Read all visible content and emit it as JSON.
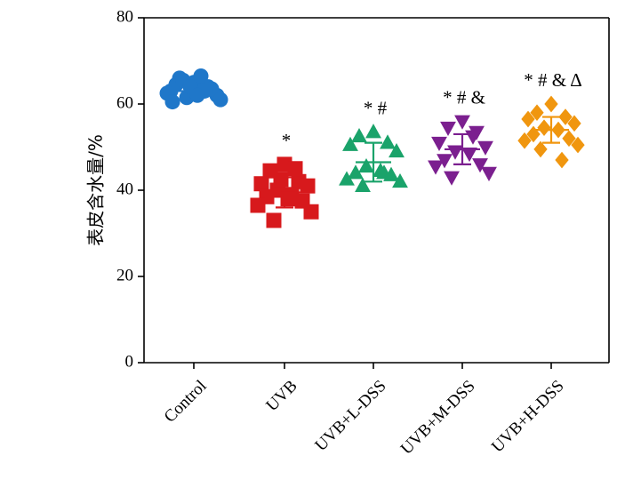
{
  "chart_data": {
    "type": "scatter",
    "title": "",
    "xlabel": "",
    "ylabel": "表皮含水量/%",
    "ylim": [
      0,
      80
    ],
    "yticks": [
      0,
      20,
      40,
      60,
      80
    ],
    "categories": [
      "Control",
      "UVB",
      "UVB+L-DSS",
      "UVB+M-DSS",
      "UVB+H-DSS"
    ],
    "grid": false,
    "legend": "none",
    "series": [
      {
        "category": "Control",
        "marker": "circle",
        "color": "#1f77c9",
        "mean": 63,
        "sd": 1.5,
        "values": [
          65,
          66,
          64,
          63,
          62,
          61.5,
          66.5,
          64.5,
          63.5,
          62.5,
          61,
          65.5,
          63,
          64,
          62,
          60.5
        ]
      },
      {
        "category": "UVB",
        "marker": "square",
        "color": "#d7191c",
        "mean": 39.5,
        "sd": 3.5,
        "values": [
          46,
          44.5,
          42,
          41.5,
          41,
          40,
          39,
          38.5,
          37.5,
          36.5,
          35,
          33,
          45,
          42.5,
          38
        ]
      },
      {
        "category": "UVB+L-DSS",
        "marker": "triangle-up",
        "color": "#1aa36a",
        "mean": 46.5,
        "sd": 4.5,
        "values": [
          53.5,
          52.5,
          51,
          50.5,
          49,
          45.5,
          44.5,
          44,
          43.5,
          42.5,
          42,
          41,
          44
        ]
      },
      {
        "category": "UVB+M-DSS",
        "marker": "triangle-down",
        "color": "#7b1f8f",
        "mean": 49.5,
        "sd": 3.5,
        "values": [
          56,
          54.5,
          53.5,
          51,
          50,
          49,
          48.5,
          47,
          46,
          45.5,
          44,
          43,
          52.5
        ]
      },
      {
        "category": "UVB+H-DSS",
        "marker": "diamond",
        "color": "#f0960f",
        "mean": 54,
        "sd": 3,
        "values": [
          60,
          58,
          57,
          56.5,
          55.5,
          54.5,
          54,
          53,
          52,
          51.5,
          50.5,
          49.5,
          47
        ]
      }
    ],
    "annotations": [
      {
        "category": "UVB",
        "text": "*"
      },
      {
        "category": "UVB+L-DSS",
        "text": "* #"
      },
      {
        "category": "UVB+M-DSS",
        "text": "* # &"
      },
      {
        "category": "UVB+H-DSS",
        "text": "* # & Δ"
      }
    ]
  }
}
